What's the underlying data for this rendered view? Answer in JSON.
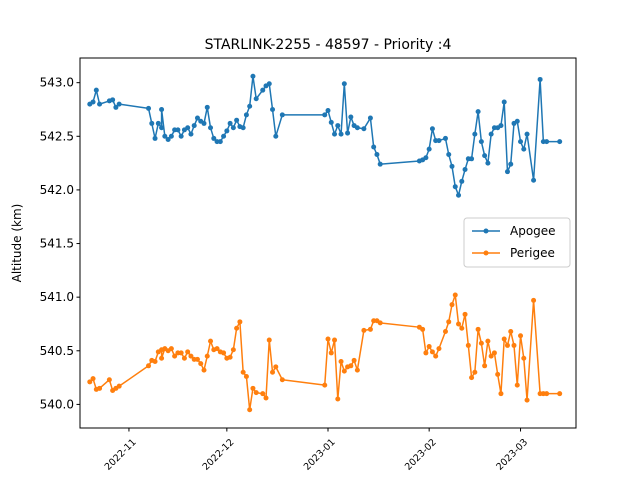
{
  "chart_data": {
    "type": "line",
    "title": "STARLINK-2255 - 48597 - Priority :4",
    "xlabel": "",
    "ylabel": "Altitude (km)",
    "x_type": "date",
    "xlim": [
      "2022-10-17",
      "2023-03-18"
    ],
    "ylim": [
      539.78,
      543.23
    ],
    "x_ticks": [
      "2022-11-01",
      "2022-12-01",
      "2023-01-01",
      "2023-02-01",
      "2023-03-01"
    ],
    "x_tick_labels": [
      "2022-11",
      "2022-12",
      "2023-01",
      "2023-02",
      "2023-03"
    ],
    "y_ticks": [
      540.0,
      540.5,
      541.0,
      541.5,
      542.0,
      542.5,
      543.0
    ],
    "y_tick_labels": [
      "540.0",
      "540.5",
      "541.0",
      "541.5",
      "542.0",
      "542.5",
      "543.0"
    ],
    "grid": false,
    "legend": {
      "position": "center-right"
    },
    "series": [
      {
        "name": "Apogee",
        "color": "#1f77b4",
        "x": [
          "2022-10-20",
          "2022-10-21",
          "2022-10-22",
          "2022-10-23",
          "2022-10-26",
          "2022-10-27",
          "2022-10-28",
          "2022-10-29",
          "2022-11-07",
          "2022-11-08",
          "2022-11-09",
          "2022-11-10",
          "2022-11-11",
          "2022-11-11",
          "2022-11-12",
          "2022-11-13",
          "2022-11-14",
          "2022-11-15",
          "2022-11-16",
          "2022-11-17",
          "2022-11-18",
          "2022-11-19",
          "2022-11-20",
          "2022-11-21",
          "2022-11-22",
          "2022-11-23",
          "2022-11-24",
          "2022-11-25",
          "2022-11-26",
          "2022-11-27",
          "2022-11-28",
          "2022-11-29",
          "2022-11-30",
          "2022-12-01",
          "2022-12-02",
          "2022-12-03",
          "2022-12-04",
          "2022-12-05",
          "2022-12-06",
          "2022-12-07",
          "2022-12-08",
          "2022-12-09",
          "2022-12-10",
          "2022-12-12",
          "2022-12-13",
          "2022-12-14",
          "2022-12-15",
          "2022-12-16",
          "2022-12-18",
          "2022-12-31",
          "2023-01-01",
          "2023-01-02",
          "2023-01-03",
          "2023-01-04",
          "2023-01-05",
          "2023-01-06",
          "2023-01-07",
          "2023-01-08",
          "2023-01-09",
          "2023-01-10",
          "2023-01-12",
          "2023-01-14",
          "2023-01-15",
          "2023-01-16",
          "2023-01-17",
          "2023-01-29",
          "2023-01-30",
          "2023-01-31",
          "2023-02-01",
          "2023-02-02",
          "2023-02-03",
          "2023-02-04",
          "2023-02-06",
          "2023-02-07",
          "2023-02-08",
          "2023-02-09",
          "2023-02-10",
          "2023-02-11",
          "2023-02-12",
          "2023-02-13",
          "2023-02-14",
          "2023-02-15",
          "2023-02-16",
          "2023-02-17",
          "2023-02-18",
          "2023-02-19",
          "2023-02-20",
          "2023-02-21",
          "2023-02-22",
          "2023-02-23",
          "2023-02-24",
          "2023-02-25",
          "2023-02-26",
          "2023-02-27",
          "2023-02-28",
          "2023-03-01",
          "2023-03-02",
          "2023-03-03",
          "2023-03-05",
          "2023-03-07",
          "2023-03-08",
          "2023-03-09",
          "2023-03-13"
        ],
        "y": [
          542.8,
          542.82,
          542.93,
          542.8,
          542.83,
          542.84,
          542.77,
          542.8,
          542.76,
          542.62,
          542.48,
          542.62,
          542.58,
          542.75,
          542.5,
          542.47,
          542.5,
          542.56,
          542.56,
          542.5,
          542.56,
          542.58,
          542.52,
          542.6,
          542.67,
          542.64,
          542.62,
          542.77,
          542.58,
          542.48,
          542.45,
          542.45,
          542.5,
          542.55,
          542.62,
          542.58,
          542.65,
          542.59,
          542.58,
          542.7,
          542.78,
          543.06,
          542.85,
          542.93,
          542.97,
          542.99,
          542.75,
          542.5,
          542.7,
          542.7,
          542.74,
          542.63,
          542.52,
          542.6,
          542.52,
          542.99,
          542.53,
          542.68,
          542.6,
          542.58,
          542.57,
          542.67,
          542.4,
          542.33,
          542.24,
          542.27,
          542.28,
          542.3,
          542.38,
          542.57,
          542.46,
          542.46,
          542.48,
          542.33,
          542.22,
          542.03,
          541.95,
          542.08,
          542.19,
          542.29,
          542.29,
          542.52,
          542.73,
          542.45,
          542.32,
          542.25,
          542.52,
          542.58,
          542.58,
          542.6,
          542.82,
          542.17,
          542.24,
          542.62,
          542.64,
          542.45,
          542.38,
          542.52,
          542.09,
          543.03,
          542.45,
          542.45,
          542.45
        ]
      },
      {
        "name": "Perigee",
        "color": "#ff7f0e",
        "x": [
          "2022-10-20",
          "2022-10-21",
          "2022-10-22",
          "2022-10-23",
          "2022-10-26",
          "2022-10-27",
          "2022-10-28",
          "2022-10-29",
          "2022-11-07",
          "2022-11-08",
          "2022-11-09",
          "2022-11-10",
          "2022-11-11",
          "2022-11-11",
          "2022-11-12",
          "2022-11-13",
          "2022-11-14",
          "2022-11-15",
          "2022-11-16",
          "2022-11-17",
          "2022-11-18",
          "2022-11-19",
          "2022-11-20",
          "2022-11-21",
          "2022-11-22",
          "2022-11-23",
          "2022-11-24",
          "2022-11-25",
          "2022-11-26",
          "2022-11-27",
          "2022-11-28",
          "2022-11-29",
          "2022-11-30",
          "2022-12-01",
          "2022-12-02",
          "2022-12-03",
          "2022-12-04",
          "2022-12-05",
          "2022-12-06",
          "2022-12-07",
          "2022-12-08",
          "2022-12-09",
          "2022-12-10",
          "2022-12-12",
          "2022-12-13",
          "2022-12-14",
          "2022-12-15",
          "2022-12-16",
          "2022-12-18",
          "2022-12-31",
          "2023-01-01",
          "2023-01-02",
          "2023-01-03",
          "2023-01-04",
          "2023-01-05",
          "2023-01-06",
          "2023-01-07",
          "2023-01-08",
          "2023-01-09",
          "2023-01-10",
          "2023-01-12",
          "2023-01-14",
          "2023-01-15",
          "2023-01-16",
          "2023-01-17",
          "2023-01-29",
          "2023-01-30",
          "2023-01-31",
          "2023-02-01",
          "2023-02-02",
          "2023-02-03",
          "2023-02-04",
          "2023-02-06",
          "2023-02-07",
          "2023-02-08",
          "2023-02-09",
          "2023-02-10",
          "2023-02-11",
          "2023-02-12",
          "2023-02-13",
          "2023-02-14",
          "2023-02-15",
          "2023-02-16",
          "2023-02-17",
          "2023-02-18",
          "2023-02-19",
          "2023-02-20",
          "2023-02-21",
          "2023-02-22",
          "2023-02-23",
          "2023-02-24",
          "2023-02-25",
          "2023-02-26",
          "2023-02-27",
          "2023-02-28",
          "2023-03-01",
          "2023-03-02",
          "2023-03-03",
          "2023-03-05",
          "2023-03-07",
          "2023-03-08",
          "2023-03-09",
          "2023-03-13"
        ],
        "y": [
          540.21,
          540.24,
          540.14,
          540.15,
          540.23,
          540.13,
          540.15,
          540.17,
          540.36,
          540.41,
          540.4,
          540.49,
          540.51,
          540.43,
          540.52,
          540.5,
          540.52,
          540.45,
          540.48,
          540.48,
          540.43,
          540.49,
          540.45,
          540.42,
          540.42,
          540.38,
          540.32,
          540.45,
          540.59,
          540.51,
          540.52,
          540.49,
          540.48,
          540.43,
          540.44,
          540.51,
          540.71,
          540.77,
          540.3,
          540.26,
          539.95,
          540.15,
          540.11,
          540.1,
          540.06,
          540.6,
          540.3,
          540.35,
          540.23,
          540.18,
          540.61,
          540.48,
          540.6,
          540.05,
          540.4,
          540.31,
          540.35,
          540.36,
          540.41,
          540.32,
          540.69,
          540.7,
          540.78,
          540.78,
          540.76,
          540.72,
          540.7,
          540.48,
          540.54,
          540.49,
          540.45,
          540.52,
          540.68,
          540.77,
          540.93,
          541.02,
          540.75,
          540.71,
          540.84,
          540.55,
          540.25,
          540.3,
          540.7,
          540.57,
          540.36,
          540.59,
          540.45,
          540.48,
          540.28,
          540.1,
          540.61,
          540.55,
          540.68,
          540.55,
          540.18,
          540.64,
          540.43,
          540.04,
          540.97,
          540.1,
          540.1,
          540.1,
          540.1
        ]
      }
    ]
  }
}
